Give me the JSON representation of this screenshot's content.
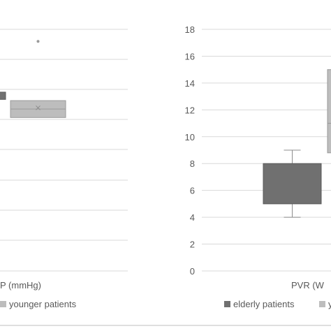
{
  "chart_data": [
    {
      "type": "box",
      "xlabel": "P (mmHg)",
      "ylabel": "",
      "grid": true,
      "series": [
        {
          "name": "elderly patients",
          "color": "#707070",
          "box": {
            "q1_px_hint": null
          },
          "visible": "partial"
        },
        {
          "name": "younger patients",
          "color": "#bdbdbd",
          "visible": "partial"
        }
      ],
      "boxes": [
        {
          "series": "elderly patients",
          "q1": 11.0,
          "q3": 14.0
        },
        {
          "series": "younger patients",
          "q1": 3.5,
          "median": 7.0,
          "q3": 10.5,
          "mean": 7.5,
          "outliers": [
            35.0
          ]
        }
      ],
      "ylim": [
        -60,
        40
      ],
      "legend": [
        {
          "label": "younger patients",
          "color": "#bdbdbd"
        }
      ],
      "legend_position": "bottom"
    },
    {
      "type": "box",
      "xlabel": "PVR (W",
      "ylabel": "",
      "ylim": [
        0,
        18
      ],
      "yticks": [
        "0",
        "2",
        "4",
        "6",
        "8",
        "10",
        "12",
        "14",
        "16",
        "18"
      ],
      "grid": true,
      "boxes": [
        {
          "series": "elderly patients",
          "min": 4,
          "q1": 5,
          "median": 5,
          "q3": 8,
          "max": 9
        },
        {
          "series": "younger patients",
          "q1": 8.8,
          "median": 11,
          "q3": 15
        }
      ],
      "legend": [
        {
          "label": "elderly patients",
          "color": "#707070"
        },
        {
          "label": "y",
          "color": "#bdbdbd"
        }
      ],
      "legend_position": "bottom"
    }
  ],
  "colors": {
    "elderly": "#707070",
    "younger": "#bdbdbd",
    "grid": "#d9d9d9",
    "text": "#595959"
  }
}
